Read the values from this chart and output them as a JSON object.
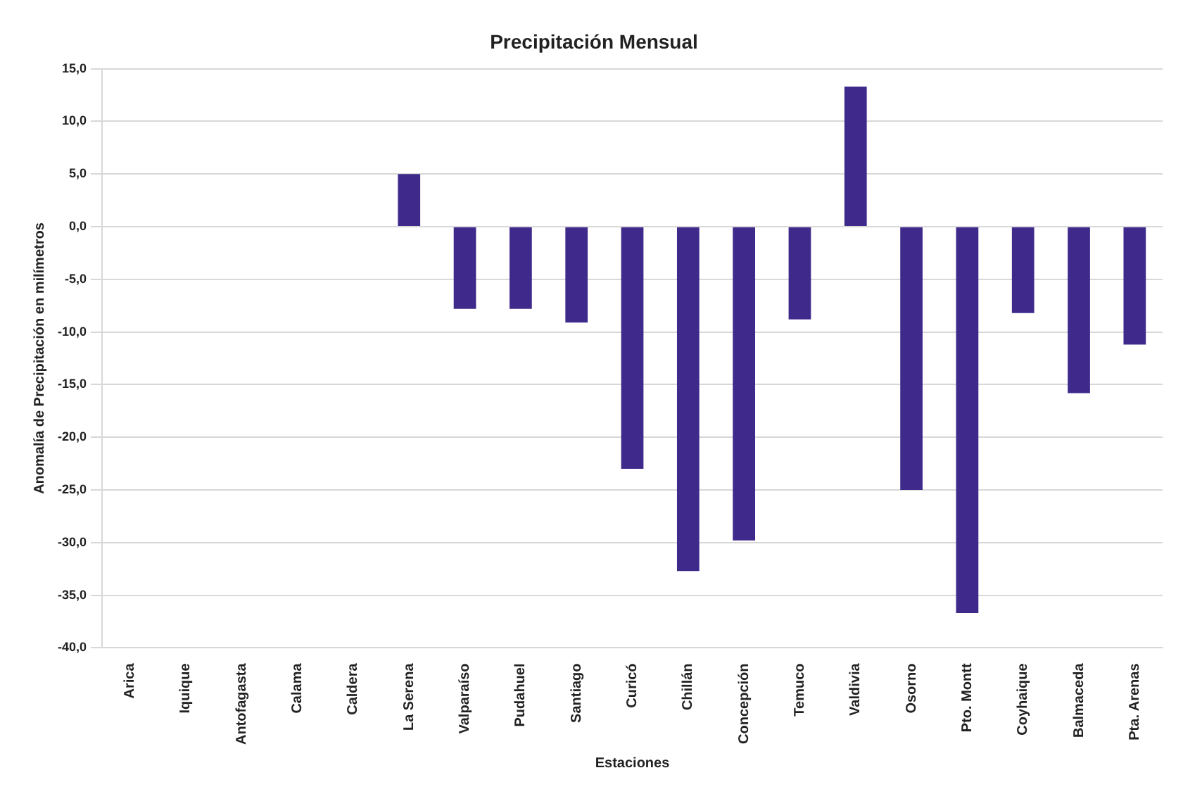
{
  "chart_data": {
    "type": "bar",
    "title": "Precipitación Mensual",
    "xlabel": "Estaciones",
    "ylabel": "Anomalía de Precipitación en milímetros",
    "categories": [
      "Arica",
      "Iquique",
      "Antofagasta",
      "Calama",
      "Caldera",
      "La Serena",
      "Valparaíso",
      "Pudahuel",
      "Santiago",
      "Curicó",
      "Chillán",
      "Concepción",
      "Temuco",
      "Valdivia",
      "Osorno",
      "Pto. Montt",
      "Coyhaique",
      "Balmaceda",
      "Pta. Arenas"
    ],
    "values": [
      0,
      0,
      0,
      0,
      0,
      5.0,
      -7.8,
      -7.8,
      -9.1,
      -23.0,
      -32.7,
      -29.8,
      -8.8,
      13.3,
      -25.0,
      -36.7,
      -8.2,
      -15.8,
      -11.2
    ],
    "color": "#3f2a8c",
    "ylim": [
      -40,
      15
    ],
    "yticks": [
      {
        "value": 15,
        "label": "15,0"
      },
      {
        "value": 10,
        "label": "10,0"
      },
      {
        "value": 5,
        "label": "5,0"
      },
      {
        "value": 0,
        "label": "0,0"
      },
      {
        "value": -5,
        "label": "-5,0"
      },
      {
        "value": -10,
        "label": "-10,0"
      },
      {
        "value": -15,
        "label": "-15,0"
      },
      {
        "value": -20,
        "label": "-20,0"
      },
      {
        "value": -25,
        "label": "-25,0"
      },
      {
        "value": -30,
        "label": "-30,0"
      },
      {
        "value": -35,
        "label": "-35,0"
      },
      {
        "value": -40,
        "label": "-40,0"
      }
    ],
    "grid": "y",
    "legend": false
  }
}
